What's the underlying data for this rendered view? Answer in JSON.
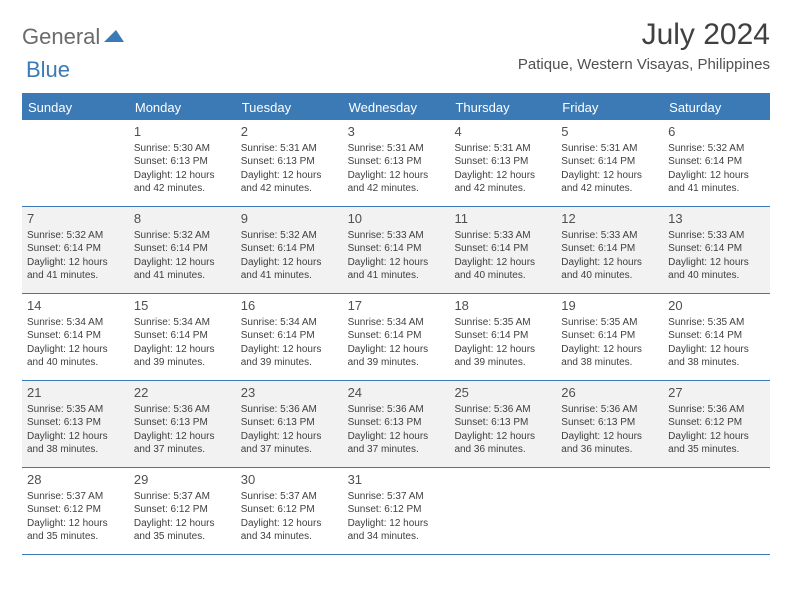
{
  "brand": {
    "part1": "General",
    "part2": "Blue"
  },
  "title": "July 2024",
  "subtitle": "Patique, Western Visayas, Philippines",
  "colors": {
    "accent": "#3c7ab5",
    "shade": "#f2f2f2",
    "text": "#404040",
    "header_text": "#ffffff",
    "background": "#ffffff"
  },
  "typography": {
    "title_fontsize": 30,
    "subtitle_fontsize": 15,
    "weekday_fontsize": 13,
    "daynum_fontsize": 13,
    "body_fontsize": 10
  },
  "weekdays": [
    "Sunday",
    "Monday",
    "Tuesday",
    "Wednesday",
    "Thursday",
    "Friday",
    "Saturday"
  ],
  "weeks": [
    {
      "shaded": false,
      "days": [
        {
          "num": "",
          "sunrise": "",
          "sunset": "",
          "daylight": ""
        },
        {
          "num": "1",
          "sunrise": "Sunrise: 5:30 AM",
          "sunset": "Sunset: 6:13 PM",
          "daylight": "Daylight: 12 hours and 42 minutes."
        },
        {
          "num": "2",
          "sunrise": "Sunrise: 5:31 AM",
          "sunset": "Sunset: 6:13 PM",
          "daylight": "Daylight: 12 hours and 42 minutes."
        },
        {
          "num": "3",
          "sunrise": "Sunrise: 5:31 AM",
          "sunset": "Sunset: 6:13 PM",
          "daylight": "Daylight: 12 hours and 42 minutes."
        },
        {
          "num": "4",
          "sunrise": "Sunrise: 5:31 AM",
          "sunset": "Sunset: 6:13 PM",
          "daylight": "Daylight: 12 hours and 42 minutes."
        },
        {
          "num": "5",
          "sunrise": "Sunrise: 5:31 AM",
          "sunset": "Sunset: 6:14 PM",
          "daylight": "Daylight: 12 hours and 42 minutes."
        },
        {
          "num": "6",
          "sunrise": "Sunrise: 5:32 AM",
          "sunset": "Sunset: 6:14 PM",
          "daylight": "Daylight: 12 hours and 41 minutes."
        }
      ]
    },
    {
      "shaded": true,
      "days": [
        {
          "num": "7",
          "sunrise": "Sunrise: 5:32 AM",
          "sunset": "Sunset: 6:14 PM",
          "daylight": "Daylight: 12 hours and 41 minutes."
        },
        {
          "num": "8",
          "sunrise": "Sunrise: 5:32 AM",
          "sunset": "Sunset: 6:14 PM",
          "daylight": "Daylight: 12 hours and 41 minutes."
        },
        {
          "num": "9",
          "sunrise": "Sunrise: 5:32 AM",
          "sunset": "Sunset: 6:14 PM",
          "daylight": "Daylight: 12 hours and 41 minutes."
        },
        {
          "num": "10",
          "sunrise": "Sunrise: 5:33 AM",
          "sunset": "Sunset: 6:14 PM",
          "daylight": "Daylight: 12 hours and 41 minutes."
        },
        {
          "num": "11",
          "sunrise": "Sunrise: 5:33 AM",
          "sunset": "Sunset: 6:14 PM",
          "daylight": "Daylight: 12 hours and 40 minutes."
        },
        {
          "num": "12",
          "sunrise": "Sunrise: 5:33 AM",
          "sunset": "Sunset: 6:14 PM",
          "daylight": "Daylight: 12 hours and 40 minutes."
        },
        {
          "num": "13",
          "sunrise": "Sunrise: 5:33 AM",
          "sunset": "Sunset: 6:14 PM",
          "daylight": "Daylight: 12 hours and 40 minutes."
        }
      ]
    },
    {
      "shaded": false,
      "days": [
        {
          "num": "14",
          "sunrise": "Sunrise: 5:34 AM",
          "sunset": "Sunset: 6:14 PM",
          "daylight": "Daylight: 12 hours and 40 minutes."
        },
        {
          "num": "15",
          "sunrise": "Sunrise: 5:34 AM",
          "sunset": "Sunset: 6:14 PM",
          "daylight": "Daylight: 12 hours and 39 minutes."
        },
        {
          "num": "16",
          "sunrise": "Sunrise: 5:34 AM",
          "sunset": "Sunset: 6:14 PM",
          "daylight": "Daylight: 12 hours and 39 minutes."
        },
        {
          "num": "17",
          "sunrise": "Sunrise: 5:34 AM",
          "sunset": "Sunset: 6:14 PM",
          "daylight": "Daylight: 12 hours and 39 minutes."
        },
        {
          "num": "18",
          "sunrise": "Sunrise: 5:35 AM",
          "sunset": "Sunset: 6:14 PM",
          "daylight": "Daylight: 12 hours and 39 minutes."
        },
        {
          "num": "19",
          "sunrise": "Sunrise: 5:35 AM",
          "sunset": "Sunset: 6:14 PM",
          "daylight": "Daylight: 12 hours and 38 minutes."
        },
        {
          "num": "20",
          "sunrise": "Sunrise: 5:35 AM",
          "sunset": "Sunset: 6:14 PM",
          "daylight": "Daylight: 12 hours and 38 minutes."
        }
      ]
    },
    {
      "shaded": true,
      "days": [
        {
          "num": "21",
          "sunrise": "Sunrise: 5:35 AM",
          "sunset": "Sunset: 6:13 PM",
          "daylight": "Daylight: 12 hours and 38 minutes."
        },
        {
          "num": "22",
          "sunrise": "Sunrise: 5:36 AM",
          "sunset": "Sunset: 6:13 PM",
          "daylight": "Daylight: 12 hours and 37 minutes."
        },
        {
          "num": "23",
          "sunrise": "Sunrise: 5:36 AM",
          "sunset": "Sunset: 6:13 PM",
          "daylight": "Daylight: 12 hours and 37 minutes."
        },
        {
          "num": "24",
          "sunrise": "Sunrise: 5:36 AM",
          "sunset": "Sunset: 6:13 PM",
          "daylight": "Daylight: 12 hours and 37 minutes."
        },
        {
          "num": "25",
          "sunrise": "Sunrise: 5:36 AM",
          "sunset": "Sunset: 6:13 PM",
          "daylight": "Daylight: 12 hours and 36 minutes."
        },
        {
          "num": "26",
          "sunrise": "Sunrise: 5:36 AM",
          "sunset": "Sunset: 6:13 PM",
          "daylight": "Daylight: 12 hours and 36 minutes."
        },
        {
          "num": "27",
          "sunrise": "Sunrise: 5:36 AM",
          "sunset": "Sunset: 6:12 PM",
          "daylight": "Daylight: 12 hours and 35 minutes."
        }
      ]
    },
    {
      "shaded": false,
      "days": [
        {
          "num": "28",
          "sunrise": "Sunrise: 5:37 AM",
          "sunset": "Sunset: 6:12 PM",
          "daylight": "Daylight: 12 hours and 35 minutes."
        },
        {
          "num": "29",
          "sunrise": "Sunrise: 5:37 AM",
          "sunset": "Sunset: 6:12 PM",
          "daylight": "Daylight: 12 hours and 35 minutes."
        },
        {
          "num": "30",
          "sunrise": "Sunrise: 5:37 AM",
          "sunset": "Sunset: 6:12 PM",
          "daylight": "Daylight: 12 hours and 34 minutes."
        },
        {
          "num": "31",
          "sunrise": "Sunrise: 5:37 AM",
          "sunset": "Sunset: 6:12 PM",
          "daylight": "Daylight: 12 hours and 34 minutes."
        },
        {
          "num": "",
          "sunrise": "",
          "sunset": "",
          "daylight": ""
        },
        {
          "num": "",
          "sunrise": "",
          "sunset": "",
          "daylight": ""
        },
        {
          "num": "",
          "sunrise": "",
          "sunset": "",
          "daylight": ""
        }
      ]
    }
  ]
}
